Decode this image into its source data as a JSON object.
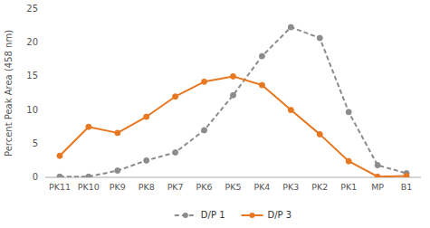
{
  "chart_data": {
    "type": "line",
    "categories": [
      "PK11",
      "PK10",
      "PK9",
      "PK8",
      "PK7",
      "PK6",
      "PK5",
      "PK4",
      "PK3",
      "PK2",
      "PK1",
      "MP",
      "B1"
    ],
    "series": [
      {
        "name": "D/P 1",
        "color": "#8c8c8c",
        "line_style": "dashed",
        "marker": "circle",
        "values": [
          0.1,
          0.1,
          1.0,
          2.5,
          3.7,
          7.0,
          12.2,
          18.0,
          22.3,
          20.7,
          9.7,
          1.8,
          0.6
        ]
      },
      {
        "name": "D/P 3",
        "color": "#E87722",
        "line_style": "solid",
        "marker": "circle",
        "values": [
          3.2,
          7.5,
          6.6,
          9.0,
          12.0,
          14.2,
          15.0,
          13.7,
          10.0,
          6.4,
          2.4,
          0.1,
          0.2
        ]
      }
    ],
    "ylabel": "Percent Peak Area (458 nm)",
    "ylim": [
      0,
      25
    ],
    "yticks": [
      0,
      5,
      10,
      15,
      20,
      25
    ],
    "grid": false,
    "legend": "bottom"
  }
}
